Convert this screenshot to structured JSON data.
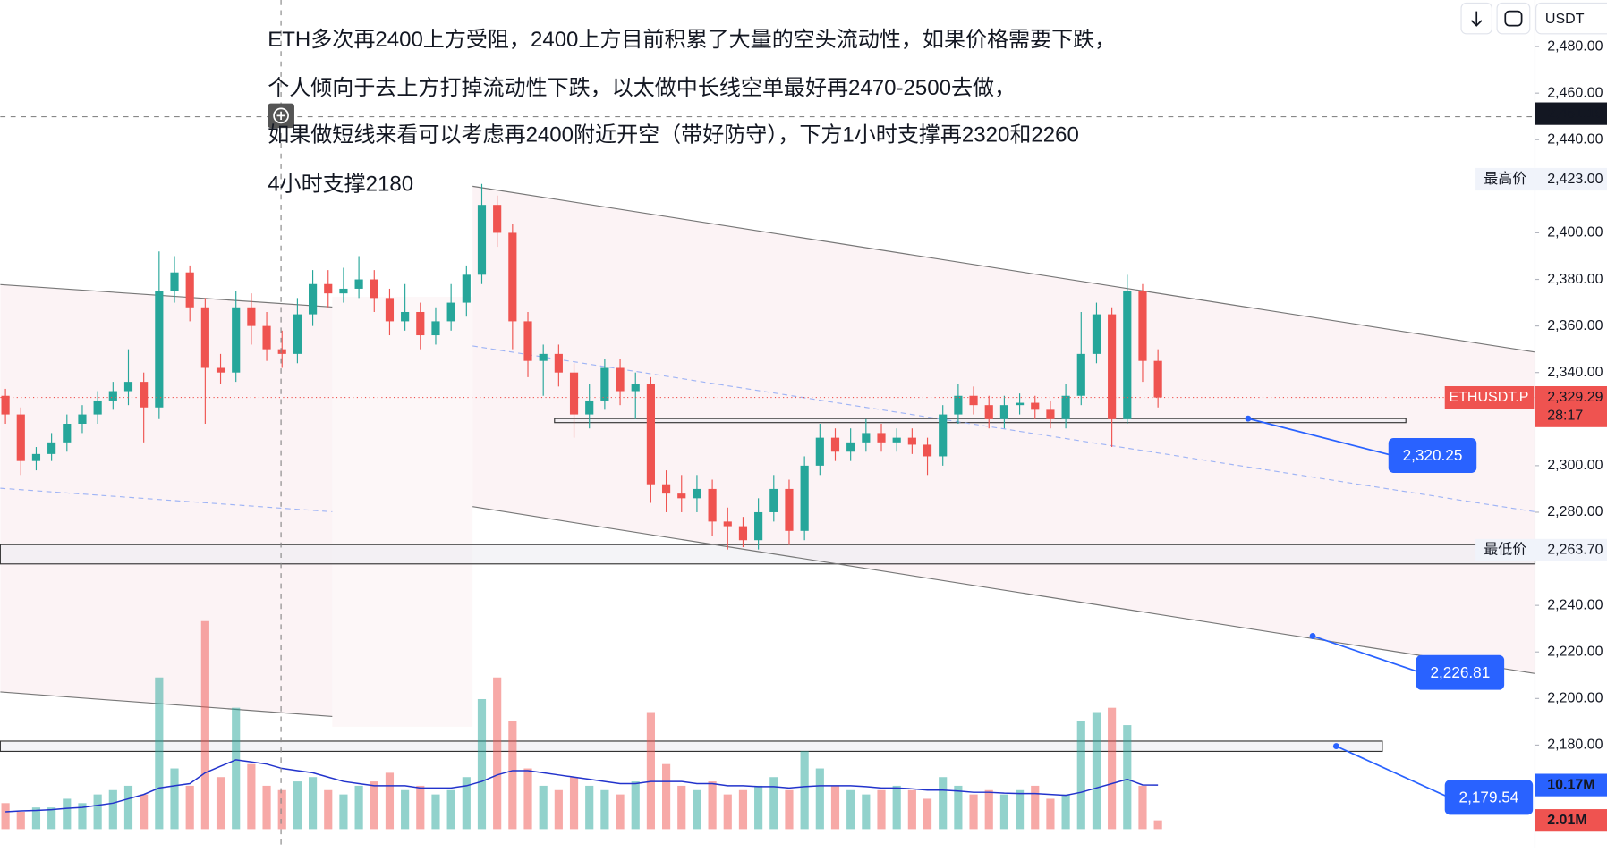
{
  "chart_data": {
    "type": "candlestick",
    "notes": [
      "ETH多次再2400上方受阻，2400上方目前积累了大量的空头流动性，如果价格需要下跌，",
      "个人倾向于去上方打掉流动性下跌，以太做中长线空单最好再2470-2500去做，",
      "如果做短线来看可以考虑再2400附近开空（带好防守），下方1小时支撑再2320和2260",
      "4小时支撑2180"
    ],
    "currency": "USDT",
    "up_color": "#26a69a",
    "down_color": "#ef5350",
    "ylim": [
      2500,
      2136
    ],
    "yticks": [
      {
        "value": 2480,
        "label": "2,480.00"
      },
      {
        "value": 2460,
        "label": "2,460.00"
      },
      {
        "value": 2440,
        "label": "2,440.00"
      },
      {
        "value": 2400,
        "label": "2,400.00"
      },
      {
        "value": 2380,
        "label": "2,380.00"
      },
      {
        "value": 2360,
        "label": "2,360.00"
      },
      {
        "value": 2340,
        "label": "2,340.00"
      },
      {
        "value": 2300,
        "label": "2,300.00"
      },
      {
        "value": 2280,
        "label": "2,280.00"
      },
      {
        "value": 2240,
        "label": "2,240.00"
      },
      {
        "value": 2220,
        "label": "2,220.00"
      },
      {
        "value": 2200,
        "label": "2,200.00"
      },
      {
        "value": 2180,
        "label": "2,180.00"
      }
    ],
    "ohlc": [
      [
        2330,
        2333,
        2318,
        2322
      ],
      [
        2322,
        2325,
        2296,
        2302
      ],
      [
        2302,
        2308,
        2298,
        2305
      ],
      [
        2305,
        2314,
        2302,
        2310
      ],
      [
        2310,
        2322,
        2306,
        2318
      ],
      [
        2318,
        2326,
        2314,
        2322
      ],
      [
        2322,
        2332,
        2318,
        2328
      ],
      [
        2328,
        2336,
        2324,
        2332
      ],
      [
        2332,
        2350,
        2326,
        2336
      ],
      [
        2336,
        2340,
        2310,
        2325
      ],
      [
        2325,
        2392,
        2320,
        2375
      ],
      [
        2375,
        2390,
        2370,
        2383
      ],
      [
        2383,
        2386,
        2362,
        2368
      ],
      [
        2368,
        2372,
        2318,
        2342
      ],
      [
        2342,
        2348,
        2335,
        2340
      ],
      [
        2340,
        2375,
        2336,
        2368
      ],
      [
        2368,
        2374,
        2352,
        2360
      ],
      [
        2360,
        2366,
        2345,
        2350
      ],
      [
        2350,
        2358,
        2342,
        2348
      ],
      [
        2348,
        2372,
        2344,
        2365
      ],
      [
        2365,
        2384,
        2360,
        2378
      ],
      [
        2378,
        2384,
        2368,
        2374
      ],
      [
        2374,
        2385,
        2370,
        2376
      ],
      [
        2376,
        2390,
        2372,
        2380
      ],
      [
        2380,
        2384,
        2366,
        2372
      ],
      [
        2372,
        2376,
        2356,
        2362
      ],
      [
        2362,
        2378,
        2358,
        2366
      ],
      [
        2366,
        2370,
        2350,
        2356
      ],
      [
        2356,
        2368,
        2352,
        2362
      ],
      [
        2362,
        2378,
        2358,
        2370
      ],
      [
        2370,
        2386,
        2364,
        2382
      ],
      [
        2382,
        2421,
        2378,
        2412
      ],
      [
        2412,
        2416,
        2394,
        2400
      ],
      [
        2400,
        2404,
        2350,
        2362
      ],
      [
        2362,
        2366,
        2338,
        2345
      ],
      [
        2345,
        2352,
        2330,
        2348
      ],
      [
        2348,
        2352,
        2334,
        2340
      ],
      [
        2340,
        2344,
        2312,
        2322
      ],
      [
        2322,
        2335,
        2316,
        2328
      ],
      [
        2328,
        2346,
        2324,
        2342
      ],
      [
        2342,
        2346,
        2326,
        2332
      ],
      [
        2332,
        2340,
        2320,
        2335
      ],
      [
        2335,
        2338,
        2284,
        2292
      ],
      [
        2292,
        2298,
        2280,
        2288
      ],
      [
        2288,
        2296,
        2280,
        2286
      ],
      [
        2286,
        2296,
        2280,
        2290
      ],
      [
        2290,
        2294,
        2270,
        2276
      ],
      [
        2276,
        2282,
        2264,
        2274
      ],
      [
        2274,
        2278,
        2265,
        2268
      ],
      [
        2268,
        2286,
        2264,
        2280
      ],
      [
        2280,
        2296,
        2276,
        2290
      ],
      [
        2290,
        2294,
        2266,
        2272
      ],
      [
        2272,
        2304,
        2268,
        2300
      ],
      [
        2300,
        2318,
        2296,
        2312
      ],
      [
        2312,
        2316,
        2302,
        2306
      ],
      [
        2306,
        2316,
        2302,
        2310
      ],
      [
        2310,
        2320,
        2306,
        2314
      ],
      [
        2314,
        2318,
        2306,
        2310
      ],
      [
        2310,
        2316,
        2306,
        2312
      ],
      [
        2312,
        2316,
        2305,
        2309
      ],
      [
        2309,
        2312,
        2296,
        2304
      ],
      [
        2304,
        2326,
        2300,
        2322
      ],
      [
        2322,
        2335,
        2318,
        2330
      ],
      [
        2330,
        2334,
        2322,
        2326
      ],
      [
        2326,
        2330,
        2316,
        2320
      ],
      [
        2320,
        2330,
        2316,
        2326
      ],
      [
        2326,
        2331,
        2322,
        2327
      ],
      [
        2327,
        2330,
        2320,
        2324
      ],
      [
        2324,
        2328,
        2316,
        2320
      ],
      [
        2320,
        2335,
        2316,
        2330
      ],
      [
        2330,
        2366,
        2326,
        2348
      ],
      [
        2348,
        2370,
        2344,
        2365
      ],
      [
        2365,
        2368,
        2308,
        2320
      ],
      [
        2320,
        2382,
        2318,
        2375
      ],
      [
        2375,
        2378,
        2336,
        2345
      ],
      [
        2345,
        2350,
        2325,
        2329.29
      ]
    ],
    "volume": [
      6,
      4,
      5,
      5,
      7,
      6,
      8,
      9,
      10,
      8,
      35,
      14,
      10,
      48,
      12,
      28,
      15,
      10,
      9,
      11,
      12,
      9,
      8,
      10,
      11,
      13,
      9,
      10,
      8,
      9,
      12,
      30,
      35,
      25,
      14,
      10,
      9,
      12,
      10,
      9,
      8,
      11,
      27,
      15,
      10,
      9,
      11,
      8,
      9,
      10,
      12,
      9,
      18,
      14,
      10,
      9,
      8,
      9,
      10,
      9,
      7,
      12,
      10,
      8,
      9,
      8,
      9,
      10,
      7,
      8,
      25,
      27,
      28,
      24,
      10,
      2.01
    ],
    "volume_ma": [
      4,
      4.2,
      4.3,
      4.5,
      4.8,
      5,
      5.5,
      6,
      7,
      8,
      9.5,
      10,
      10.5,
      13,
      14.5,
      16,
      15.5,
      15,
      14,
      13.5,
      13,
      12,
      11,
      10.5,
      10,
      10,
      10,
      9.5,
      9.5,
      9.5,
      10,
      11,
      12.5,
      13.5,
      13.5,
      13,
      12.5,
      12,
      11.5,
      11,
      10.5,
      10.5,
      11,
      11,
      11,
      10.5,
      10.5,
      10,
      10,
      9.8,
      9.8,
      9.5,
      9.8,
      10,
      10,
      10,
      9.8,
      9.5,
      9.5,
      9.3,
      9,
      9,
      8.8,
      8.5,
      8.5,
      8.3,
      8.2,
      8.2,
      8,
      7.8,
      8.5,
      9.5,
      10.5,
      11.5,
      10.2,
      10.17
    ],
    "volume_ylim": [
      0,
      60
    ],
    "volume_ma_label": "10.17M",
    "volume_last_label": "2.01M",
    "crosshair_price": {
      "value": 2451.19,
      "label": "2,451.19"
    },
    "high": {
      "name": "最高价",
      "value": 2423,
      "label": "2,423.00"
    },
    "low": {
      "name": "最低价",
      "value": 2263.7,
      "label": "2,263.70"
    },
    "last": {
      "name": "ETHUSDT.P",
      "value": 2329.29,
      "label": "2,329.29",
      "countdown": "28:17"
    },
    "alerts": [
      {
        "value": 2320.25,
        "label": "2,320.25"
      },
      {
        "value": 2226.81,
        "label": "2,226.81"
      },
      {
        "value": 2179.54,
        "label": "2,179.54"
      }
    ],
    "zones": [
      [
        2320.25,
        2318.5
      ],
      [
        2266.1,
        2257.8
      ],
      [
        2181.7,
        2177.3
      ]
    ]
  }
}
